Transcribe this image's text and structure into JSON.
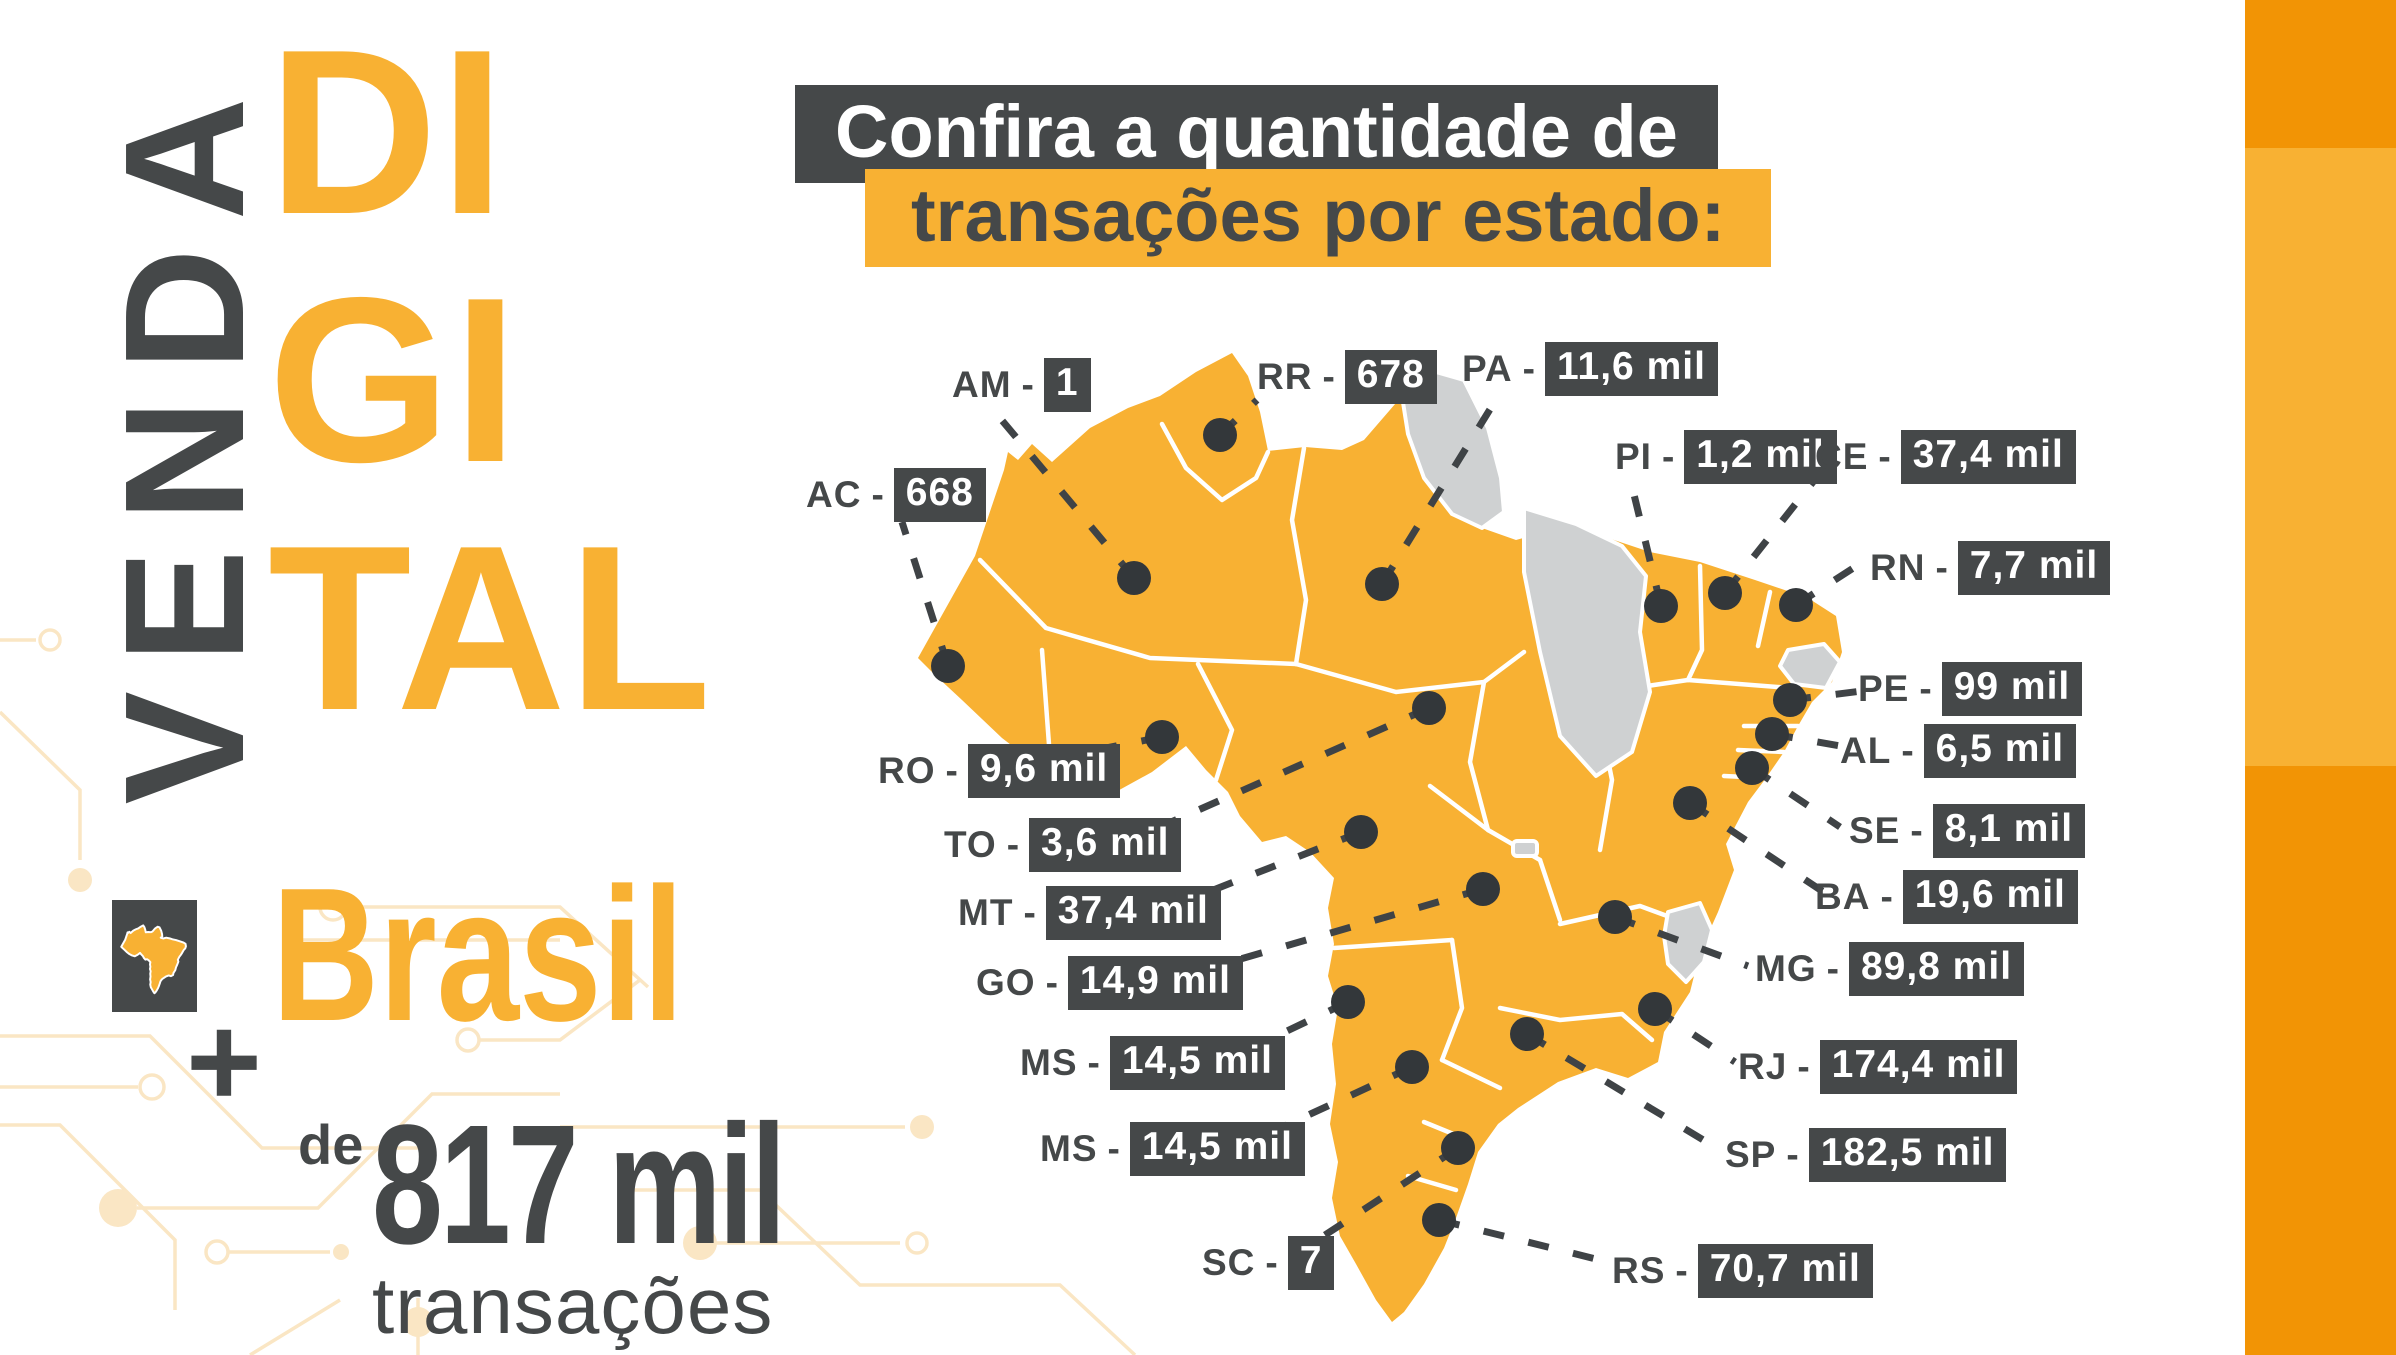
{
  "colors": {
    "orange": "#F8B133",
    "orange_deep": "#F29405",
    "dark_gray": "#454849",
    "line_ink": "#3F4346",
    "gray_state": "#CFD1D2",
    "circuit_cream": "#FAE6C4"
  },
  "left_panel": {
    "venda": "VENDA",
    "digital": [
      "DI",
      "GI",
      "TAL"
    ],
    "brasil": "Brasil",
    "plus": "+",
    "de": "de",
    "big_number": "817 mil",
    "transacoes": "transações"
  },
  "title": {
    "line1": "Confira a quantidade de",
    "line2": "transações por estado:"
  },
  "map": {
    "states": [
      {
        "id": "am",
        "code": "AM",
        "value": "1",
        "label": [
          952,
          360
        ],
        "dot": [
          1134,
          578
        ],
        "line_to": [
          1000,
          418
        ]
      },
      {
        "id": "ac",
        "code": "AC",
        "value": "668",
        "label": [
          806,
          470
        ],
        "dot": [
          948,
          666
        ],
        "line_to": [
          902,
          522
        ]
      },
      {
        "id": "ro",
        "code": "RO",
        "value": "9,6 mil",
        "label": [
          878,
          746
        ],
        "dot": [
          1162,
          737
        ],
        "line_to": [
          1055,
          758
        ]
      },
      {
        "id": "to",
        "code": "TO",
        "value": "3,6 mil",
        "label": [
          944,
          820
        ],
        "dot": [
          1429,
          708
        ],
        "line_to": [
          1135,
          838
        ]
      },
      {
        "id": "mt",
        "code": "MT",
        "value": "37,4 mil",
        "label": [
          958,
          888
        ],
        "dot": [
          1361,
          832
        ],
        "line_to": [
          1175,
          905
        ]
      },
      {
        "id": "go",
        "code": "GO",
        "value": "14,9 mil",
        "label": [
          976,
          958
        ],
        "dot": [
          1483,
          889
        ],
        "line_to": [
          1185,
          975
        ]
      },
      {
        "id": "ms",
        "code": "MS",
        "value": "14,5 mil",
        "label": [
          1020,
          1038
        ],
        "dot": [
          1348,
          1002
        ],
        "line_to": [
          1230,
          1058
        ]
      },
      {
        "id": "ms-2",
        "code": "MS",
        "value": "14,5 mil",
        "label": [
          1040,
          1124
        ],
        "dot": [
          1412,
          1067
        ],
        "line_to": [
          1250,
          1142
        ]
      },
      {
        "id": "sc",
        "code": "SC",
        "value": "7",
        "label": [
          1202,
          1238
        ],
        "dot": [
          1458,
          1148
        ],
        "line_to": [
          1302,
          1250
        ]
      },
      {
        "id": "rr",
        "code": "RR",
        "value": "678",
        "label": [
          1257,
          352
        ],
        "dot": [
          1220,
          435
        ],
        "line_to": [
          1257,
          400
        ]
      },
      {
        "id": "pa",
        "code": "PA",
        "value": "11,6 mil",
        "label": [
          1462,
          344
        ],
        "dot": [
          1382,
          584
        ],
        "line_to": [
          1497,
          398
        ]
      },
      {
        "id": "pi",
        "code": "PI",
        "value": "1,2 mil",
        "label": [
          1615,
          432
        ],
        "dot": [
          1661,
          606
        ],
        "line_to": [
          1630,
          478
        ]
      },
      {
        "id": "ce",
        "code": "CE",
        "value": "37,4 mil",
        "label": [
          1815,
          432
        ],
        "dot": [
          1725,
          593
        ],
        "line_to": [
          1813,
          482
        ]
      },
      {
        "id": "rn",
        "code": "RN",
        "value": "7,7 mil",
        "label": [
          1870,
          543
        ],
        "dot": [
          1796,
          605
        ],
        "line_to": [
          1858,
          565
        ]
      },
      {
        "id": "pe",
        "code": "PE",
        "value": "99 mil",
        "label": [
          1858,
          664
        ],
        "dot": [
          1790,
          700
        ],
        "line_to": [
          1870,
          690
        ]
      },
      {
        "id": "al",
        "code": "AL",
        "value": "6,5 mil",
        "label": [
          1840,
          726
        ],
        "dot": [
          1772,
          734
        ],
        "line_to": [
          1852,
          748
        ]
      },
      {
        "id": "se",
        "code": "SE",
        "value": "8,1 mil",
        "label": [
          1849,
          806
        ],
        "dot": [
          1752,
          768
        ],
        "line_to": [
          1840,
          827
        ]
      },
      {
        "id": "ba",
        "code": "BA",
        "value": "19,6 mil",
        "label": [
          1815,
          872
        ],
        "dot": [
          1690,
          803
        ],
        "line_to": [
          1825,
          893
        ]
      },
      {
        "id": "mg",
        "code": "MG",
        "value": "89,8 mil",
        "label": [
          1755,
          944
        ],
        "dot": [
          1615,
          917
        ],
        "line_to": [
          1748,
          966
        ]
      },
      {
        "id": "rj",
        "code": "RJ",
        "value": "174,4 mil",
        "label": [
          1738,
          1042
        ],
        "dot": [
          1655,
          1009
        ],
        "line_to": [
          1735,
          1062
        ]
      },
      {
        "id": "sp",
        "code": "SP",
        "value": "182,5 mil",
        "label": [
          1725,
          1130
        ],
        "dot": [
          1527,
          1034
        ],
        "line_to": [
          1720,
          1150
        ]
      },
      {
        "id": "rs",
        "code": "RS",
        "value": "70,7 mil",
        "label": [
          1612,
          1246
        ],
        "dot": [
          1439,
          1220
        ],
        "line_to": [
          1608,
          1262
        ]
      }
    ]
  }
}
